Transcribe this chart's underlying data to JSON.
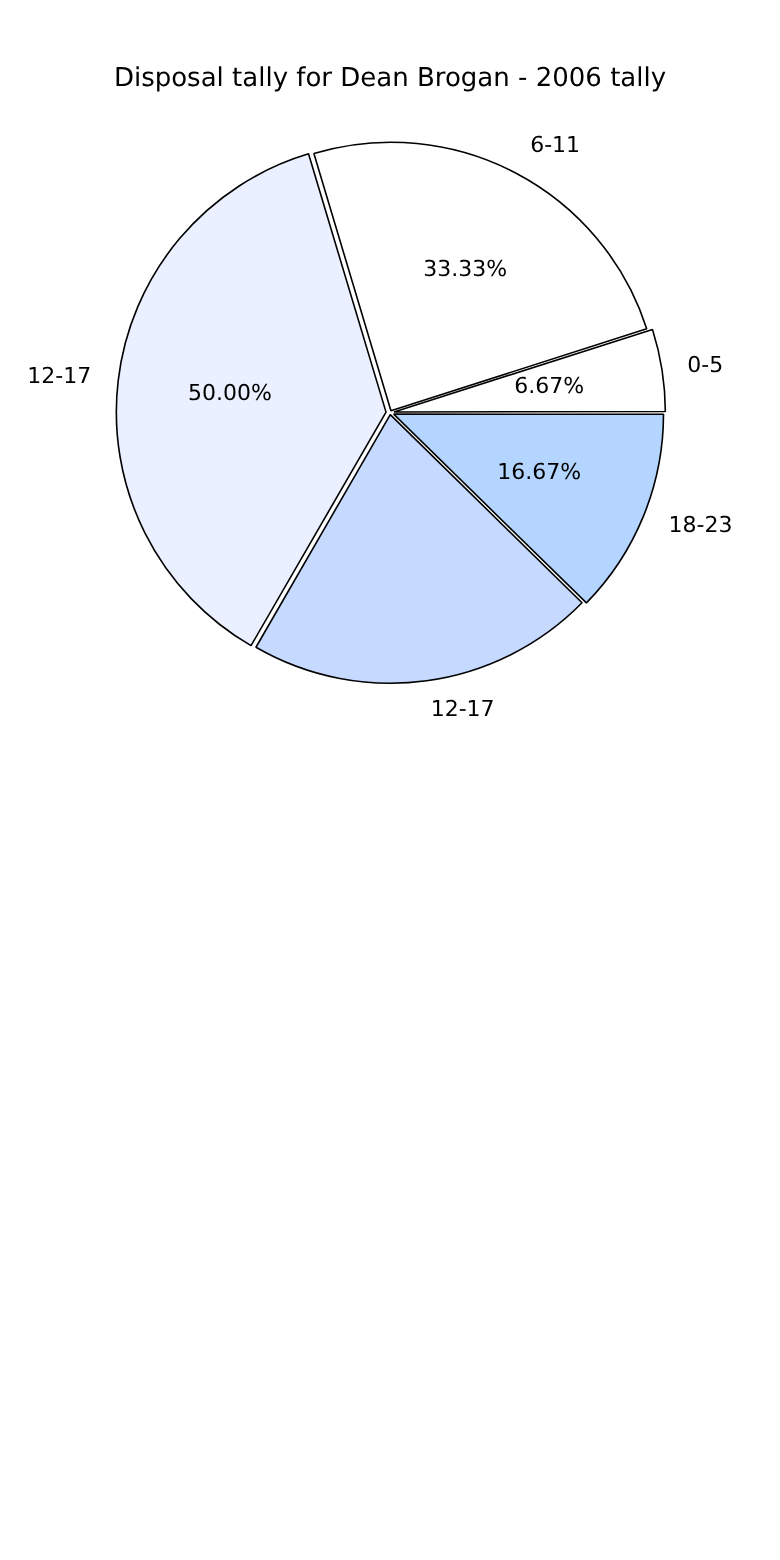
{
  "chart_data": {
    "type": "pie",
    "title": "Disposal tally for Dean Brogan - 2006 tally",
    "categories": [
      "0-5",
      "6-11",
      "12-17",
      "12-17",
      "18-23"
    ],
    "values": [
      6.67,
      33.33,
      50,
      28.33,
      16.67
    ],
    "value_labels": [
      "6.67%",
      "33.33%",
      "50.00%",
      null,
      "16.67%"
    ],
    "colors": [
      "#ffffff",
      "#ffffff",
      "#eaf0ff",
      "#c6d9ff",
      "#b3d5ff"
    ],
    "legend": false
  }
}
